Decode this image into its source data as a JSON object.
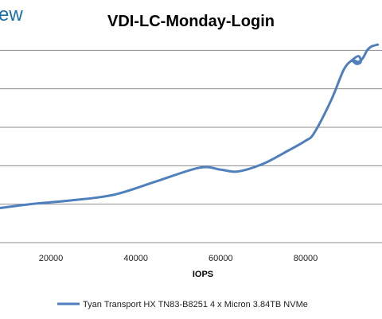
{
  "logo": {
    "text": "ew"
  },
  "chart_data": {
    "type": "line",
    "title": "VDI-LC-Monday-Login",
    "xlabel": "IOPS",
    "ylabel": "",
    "xlim": [
      8000,
      98000
    ],
    "ylim": [
      0,
      6
    ],
    "x_ticks": [
      20000,
      40000,
      60000,
      80000
    ],
    "x_tick_labels": [
      "20000",
      "40000",
      "60000",
      "80000"
    ],
    "y_gridlines": [
      1,
      2,
      3,
      4,
      5
    ],
    "grid": true,
    "legend_position": "bottom",
    "colors": {
      "series": "#4f7fbd",
      "grid": "#8c8c8c",
      "axis": "#8c8c8c"
    },
    "series": [
      {
        "name": "Tyan Transport HX TN83-B8251 4 x Micron 3.84TB NVMe",
        "x": [
          8000,
          15000,
          25000,
          35000,
          45000,
          55000,
          60000,
          64000,
          70000,
          76000,
          80000,
          82000,
          86000,
          89000,
          91000,
          92500,
          93000,
          92000,
          91000,
          92500,
          93500,
          94500,
          95500,
          97000
        ],
        "y": [
          0.9,
          1.0,
          1.1,
          1.25,
          1.6,
          1.95,
          1.9,
          1.85,
          2.05,
          2.4,
          2.65,
          2.85,
          3.7,
          4.5,
          4.75,
          4.85,
          4.7,
          4.65,
          4.75,
          4.7,
          4.8,
          5.0,
          5.1,
          5.15
        ]
      }
    ]
  }
}
